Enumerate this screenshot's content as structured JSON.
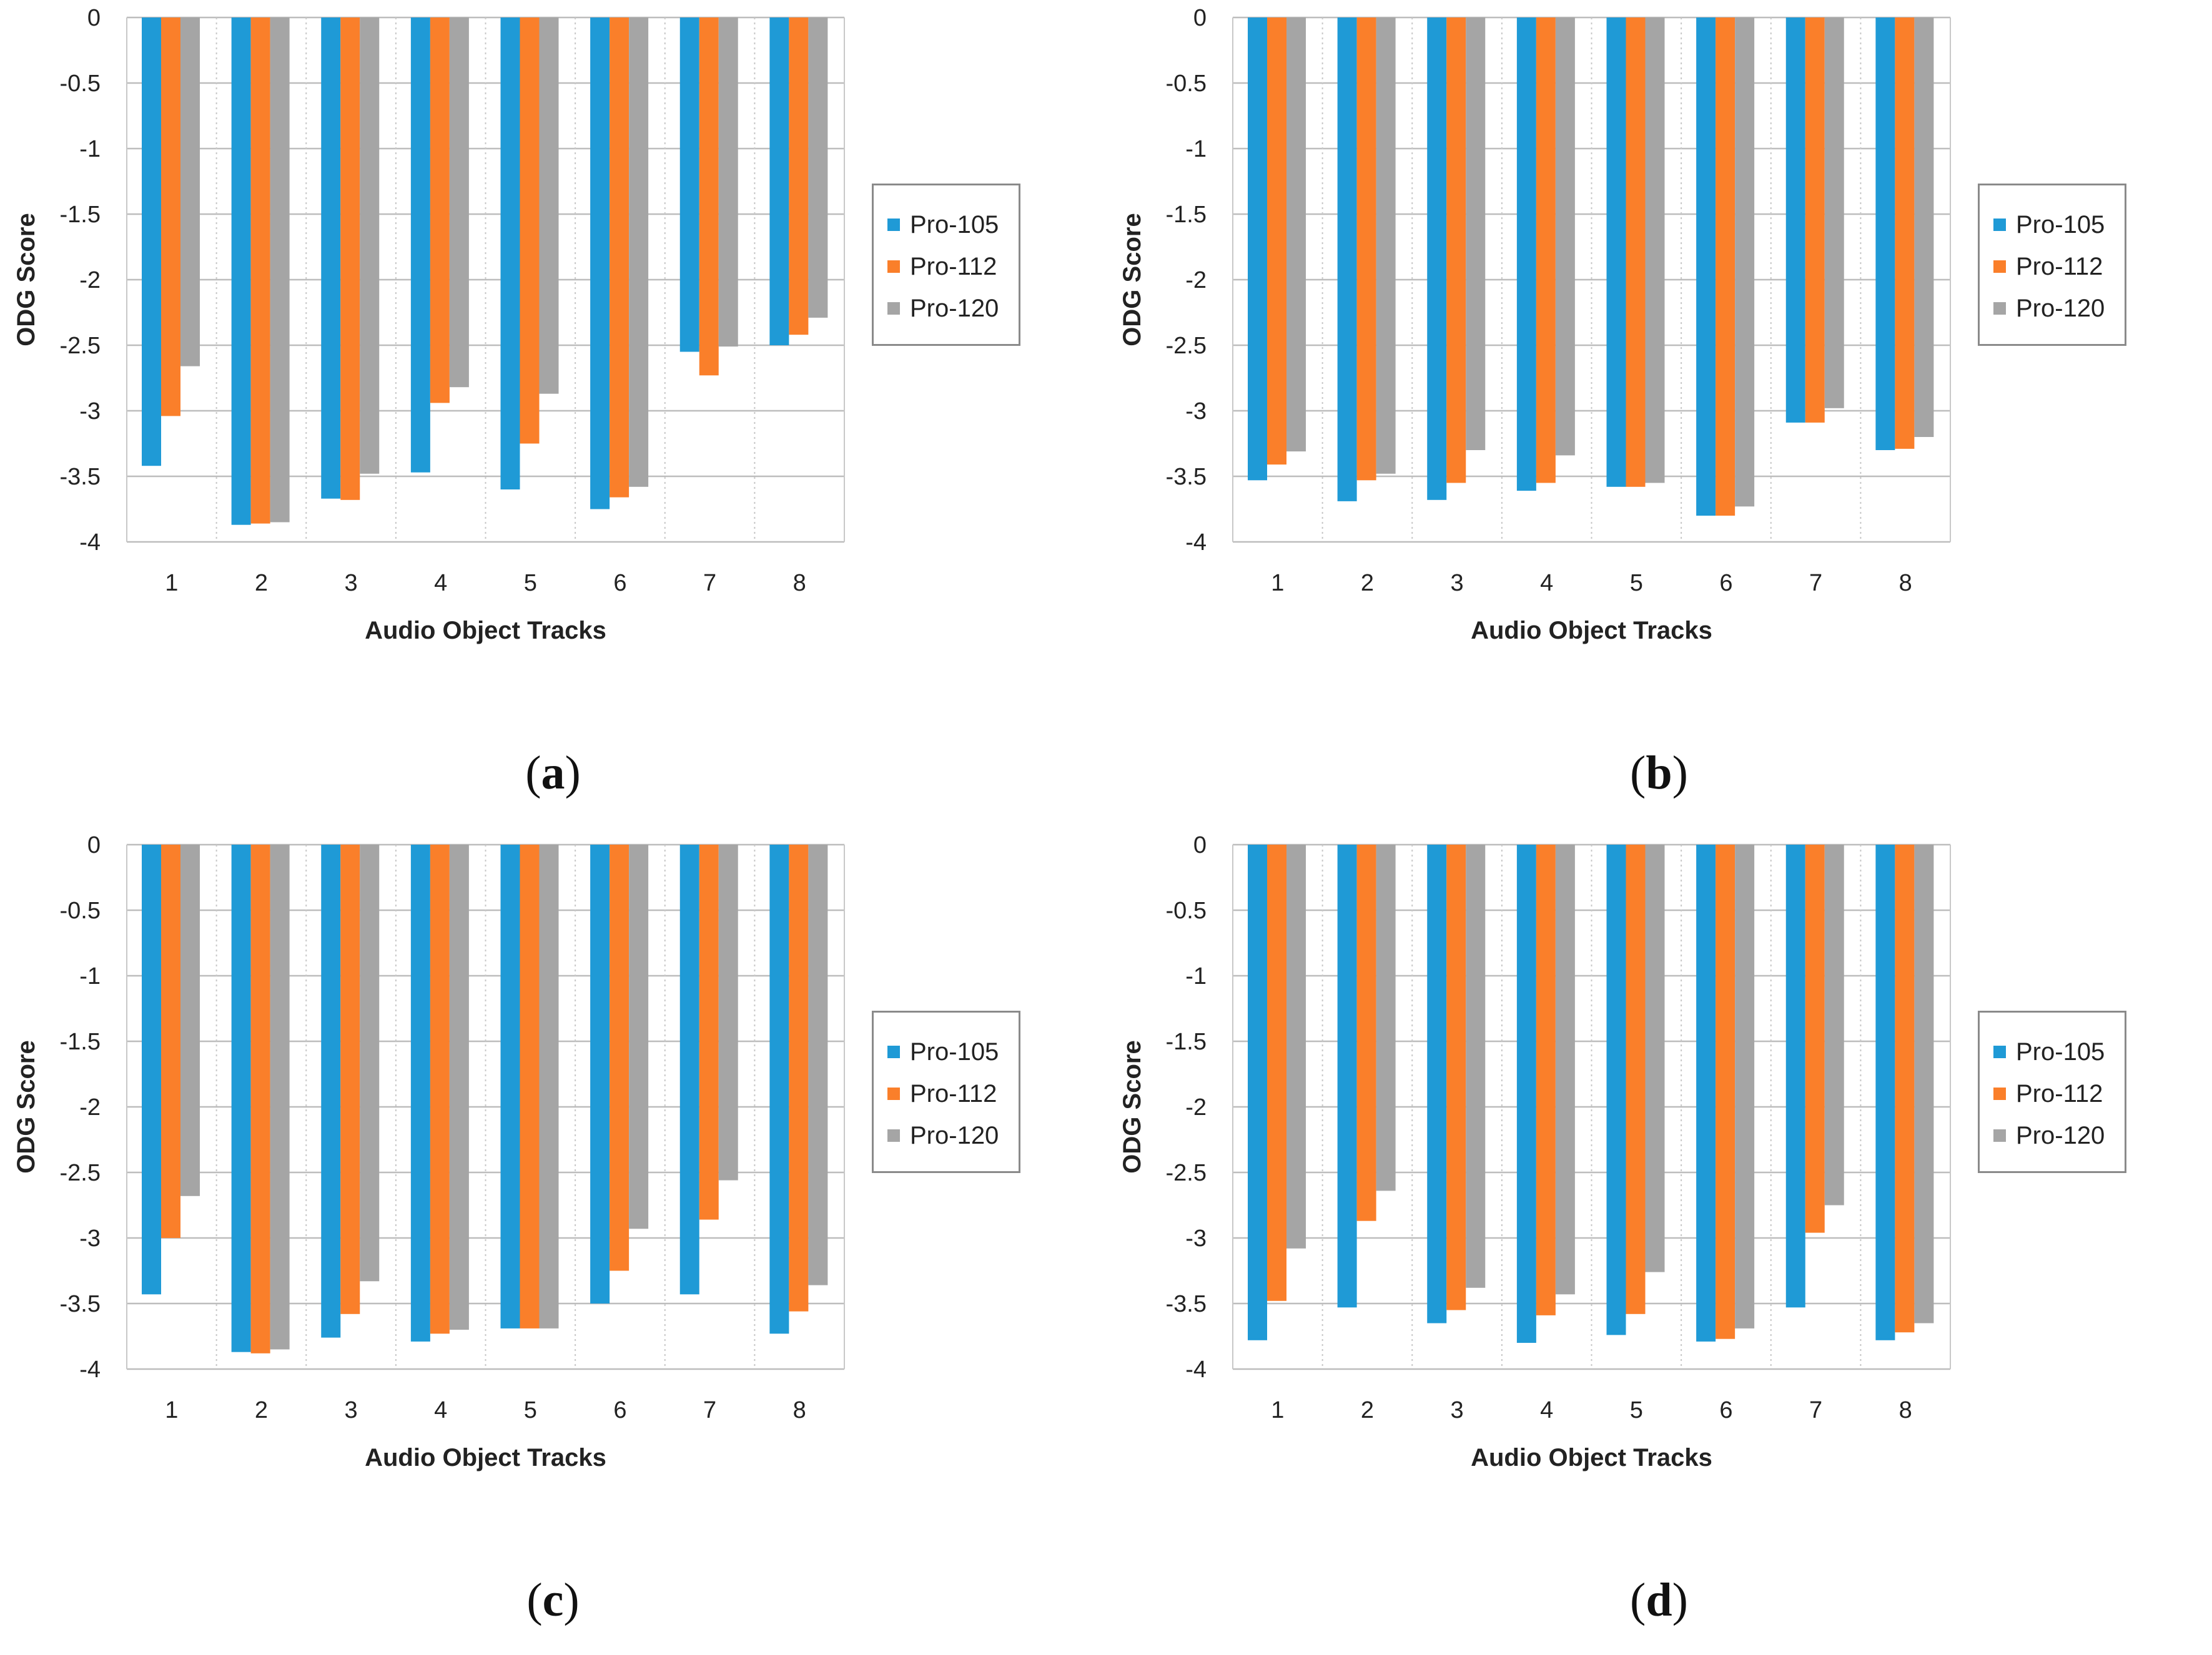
{
  "figure": {
    "label_open": "(",
    "label_close": ")"
  },
  "chart_data": [
    {
      "type": "bar",
      "panel_label": "a",
      "xlabel": "Audio Object Tracks",
      "ylabel": "ODG Score",
      "ylim": [
        -4,
        0
      ],
      "yticks": [
        "0",
        "-0.5",
        "-1",
        "-1.5",
        "-2",
        "-2.5",
        "-3",
        "-3.5",
        "-4"
      ],
      "categories": [
        "1",
        "2",
        "3",
        "4",
        "5",
        "6",
        "7",
        "8"
      ],
      "legend_position": "right",
      "series": [
        {
          "name": "Pro-105",
          "color": "#1f9ad6",
          "values": [
            -3.42,
            -3.87,
            -3.67,
            -3.47,
            -3.6,
            -3.75,
            -2.55,
            -2.5
          ]
        },
        {
          "name": "Pro-112",
          "color": "#fa7f2a",
          "values": [
            -3.04,
            -3.86,
            -3.68,
            -2.94,
            -3.25,
            -3.66,
            -2.73,
            -2.42
          ]
        },
        {
          "name": "Pro-120",
          "color": "#a5a5a5",
          "values": [
            -2.66,
            -3.85,
            -3.48,
            -2.82,
            -2.87,
            -3.58,
            -2.51,
            -2.29
          ]
        }
      ]
    },
    {
      "type": "bar",
      "panel_label": "b",
      "xlabel": "Audio Object Tracks",
      "ylabel": "ODG Score",
      "ylim": [
        -4,
        0
      ],
      "yticks": [
        "0",
        "-0.5",
        "-1",
        "-1.5",
        "-2",
        "-2.5",
        "-3",
        "-3.5",
        "-4"
      ],
      "categories": [
        "1",
        "2",
        "3",
        "4",
        "5",
        "6",
        "7",
        "8"
      ],
      "legend_position": "right",
      "series": [
        {
          "name": "Pro-105",
          "color": "#1f9ad6",
          "values": [
            -3.53,
            -3.69,
            -3.68,
            -3.61,
            -3.58,
            -3.8,
            -3.09,
            -3.3
          ]
        },
        {
          "name": "Pro-112",
          "color": "#fa7f2a",
          "values": [
            -3.41,
            -3.53,
            -3.55,
            -3.55,
            -3.58,
            -3.8,
            -3.09,
            -3.29
          ]
        },
        {
          "name": "Pro-120",
          "color": "#a5a5a5",
          "values": [
            -3.31,
            -3.48,
            -3.3,
            -3.34,
            -3.55,
            -3.73,
            -2.98,
            -3.2
          ]
        }
      ]
    },
    {
      "type": "bar",
      "panel_label": "c",
      "xlabel": "Audio Object Tracks",
      "ylabel": "ODG Score",
      "ylim": [
        -4,
        0
      ],
      "yticks": [
        "0",
        "-0.5",
        "-1",
        "-1.5",
        "-2",
        "-2.5",
        "-3",
        "-3.5",
        "-4"
      ],
      "categories": [
        "1",
        "2",
        "3",
        "4",
        "5",
        "6",
        "7",
        "8"
      ],
      "legend_position": "right",
      "series": [
        {
          "name": "Pro-105",
          "color": "#1f9ad6",
          "values": [
            -3.43,
            -3.87,
            -3.76,
            -3.79,
            -3.69,
            -3.5,
            -3.43,
            -3.73
          ]
        },
        {
          "name": "Pro-112",
          "color": "#fa7f2a",
          "values": [
            -3.0,
            -3.88,
            -3.58,
            -3.73,
            -3.69,
            -3.25,
            -2.86,
            -3.56
          ]
        },
        {
          "name": "Pro-120",
          "color": "#a5a5a5",
          "values": [
            -2.68,
            -3.85,
            -3.33,
            -3.7,
            -3.69,
            -2.93,
            -2.56,
            -3.36
          ]
        }
      ]
    },
    {
      "type": "bar",
      "panel_label": "d",
      "xlabel": "Audio Object Tracks",
      "ylabel": "ODG Score",
      "ylim": [
        -4,
        0
      ],
      "yticks": [
        "0",
        "-0.5",
        "-1",
        "-1.5",
        "-2",
        "-2.5",
        "-3",
        "-3.5",
        "-4"
      ],
      "categories": [
        "1",
        "2",
        "3",
        "4",
        "5",
        "6",
        "7",
        "8"
      ],
      "legend_position": "right",
      "series": [
        {
          "name": "Pro-105",
          "color": "#1f9ad6",
          "values": [
            -3.78,
            -3.53,
            -3.65,
            -3.8,
            -3.74,
            -3.79,
            -3.53,
            -3.78
          ]
        },
        {
          "name": "Pro-112",
          "color": "#fa7f2a",
          "values": [
            -3.48,
            -2.87,
            -3.55,
            -3.59,
            -3.58,
            -3.77,
            -2.96,
            -3.72
          ]
        },
        {
          "name": "Pro-120",
          "color": "#a5a5a5",
          "values": [
            -3.08,
            -2.64,
            -3.38,
            -3.43,
            -3.26,
            -3.69,
            -2.75,
            -3.65
          ]
        }
      ]
    }
  ]
}
